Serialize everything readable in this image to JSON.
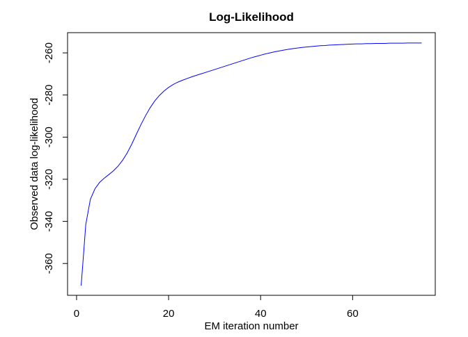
{
  "chart_data": {
    "type": "line",
    "title": "Log-Likelihood",
    "x_label": "EM iteration number",
    "y_label": "Observed data log-likelihood",
    "x": [
      1,
      2,
      3,
      4,
      5,
      6,
      7,
      8,
      9,
      10,
      11,
      12,
      13,
      14,
      15,
      16,
      17,
      18,
      19,
      20,
      21,
      22,
      23,
      24,
      25,
      26,
      27,
      28,
      29,
      30,
      31,
      32,
      33,
      34,
      35,
      36,
      37,
      38,
      39,
      40,
      41,
      42,
      43,
      44,
      45,
      46,
      47,
      48,
      49,
      50,
      51,
      52,
      53,
      54,
      55,
      56,
      57,
      58,
      59,
      60,
      61,
      62,
      63,
      64,
      65,
      66,
      67,
      68,
      69,
      70,
      71,
      72,
      73,
      74,
      75
    ],
    "series": [
      {
        "color": "#0000ff",
        "values": [
          -370.5,
          -341.5,
          -329.5,
          -324.5,
          -321.5,
          -319.5,
          -317.8,
          -316,
          -313.8,
          -311,
          -307.5,
          -303.3,
          -298.6,
          -294,
          -289.8,
          -286,
          -282.8,
          -280.2,
          -278.1,
          -276.4,
          -275,
          -273.9,
          -273,
          -272.2,
          -271.4,
          -270.7,
          -270,
          -269.3,
          -268.6,
          -267.9,
          -267.2,
          -266.5,
          -265.8,
          -265.1,
          -264.4,
          -263.7,
          -263,
          -262.3,
          -261.7,
          -261.1,
          -260.5,
          -260,
          -259.5,
          -259.1,
          -258.7,
          -258.3,
          -258,
          -257.7,
          -257.4,
          -257.2,
          -257,
          -256.8,
          -256.6,
          -256.5,
          -256.3,
          -256.2,
          -256.1,
          -256,
          -255.9,
          -255.8,
          -255.7,
          -255.7,
          -255.6,
          -255.6,
          -255.5,
          -255.5,
          -255.5,
          -255.4,
          -255.4,
          -255.4,
          -255.4,
          -255.3,
          -255.3,
          -255.3,
          -255.3
        ]
      }
    ],
    "xlim": [
      -1.96,
      77.96
    ],
    "ylim": [
      -375.1,
      -250.4
    ],
    "xticks": [
      0,
      20,
      40,
      60
    ],
    "yticks": [
      -360,
      -340,
      -320,
      -300,
      -280,
      -260
    ]
  }
}
